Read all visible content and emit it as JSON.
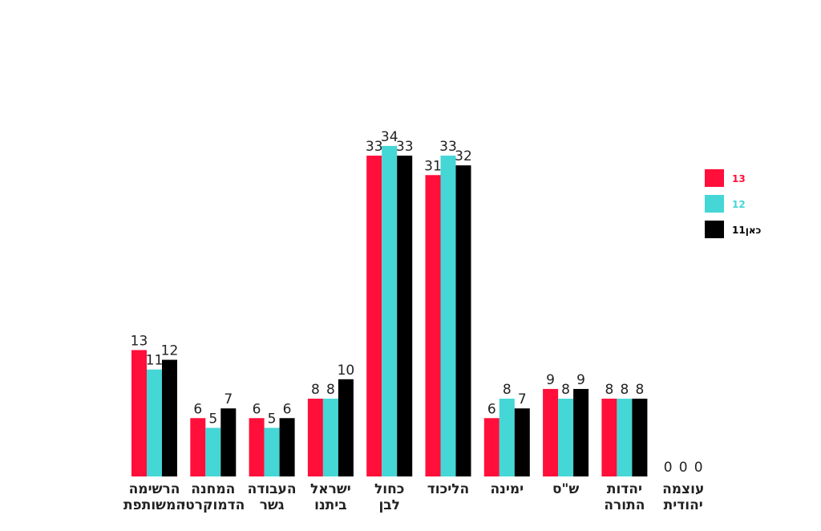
{
  "chart_data": {
    "type": "bar",
    "title": "",
    "xlabel": "",
    "ylabel": "",
    "ylim": [
      0,
      36
    ],
    "grid": false,
    "legend_position": "right",
    "categories": [
      [
        "הרשימה",
        "המשותפת"
      ],
      [
        "המחנה",
        "הדמוקרטי"
      ],
      [
        "העבודה",
        "גשר"
      ],
      [
        "ישראל",
        "ביתנו"
      ],
      [
        "כחול",
        "לבן"
      ],
      [
        "הליכוד"
      ],
      [
        "ימינה"
      ],
      [
        "ש\"ס"
      ],
      [
        "יהדות",
        "התורה"
      ],
      [
        "עוצמה",
        "יהודית"
      ]
    ],
    "series": [
      {
        "name": "13",
        "color": "#ff0f3a",
        "values": [
          13,
          6,
          6,
          8,
          33,
          31,
          6,
          9,
          8,
          0
        ]
      },
      {
        "name": "12",
        "color": "#45d6d6",
        "values": [
          11,
          5,
          5,
          8,
          34,
          33,
          8,
          8,
          8,
          0
        ]
      },
      {
        "name": "כאן11",
        "color": "#000000",
        "values": [
          12,
          7,
          6,
          10,
          33,
          32,
          7,
          9,
          8,
          0
        ]
      }
    ]
  }
}
